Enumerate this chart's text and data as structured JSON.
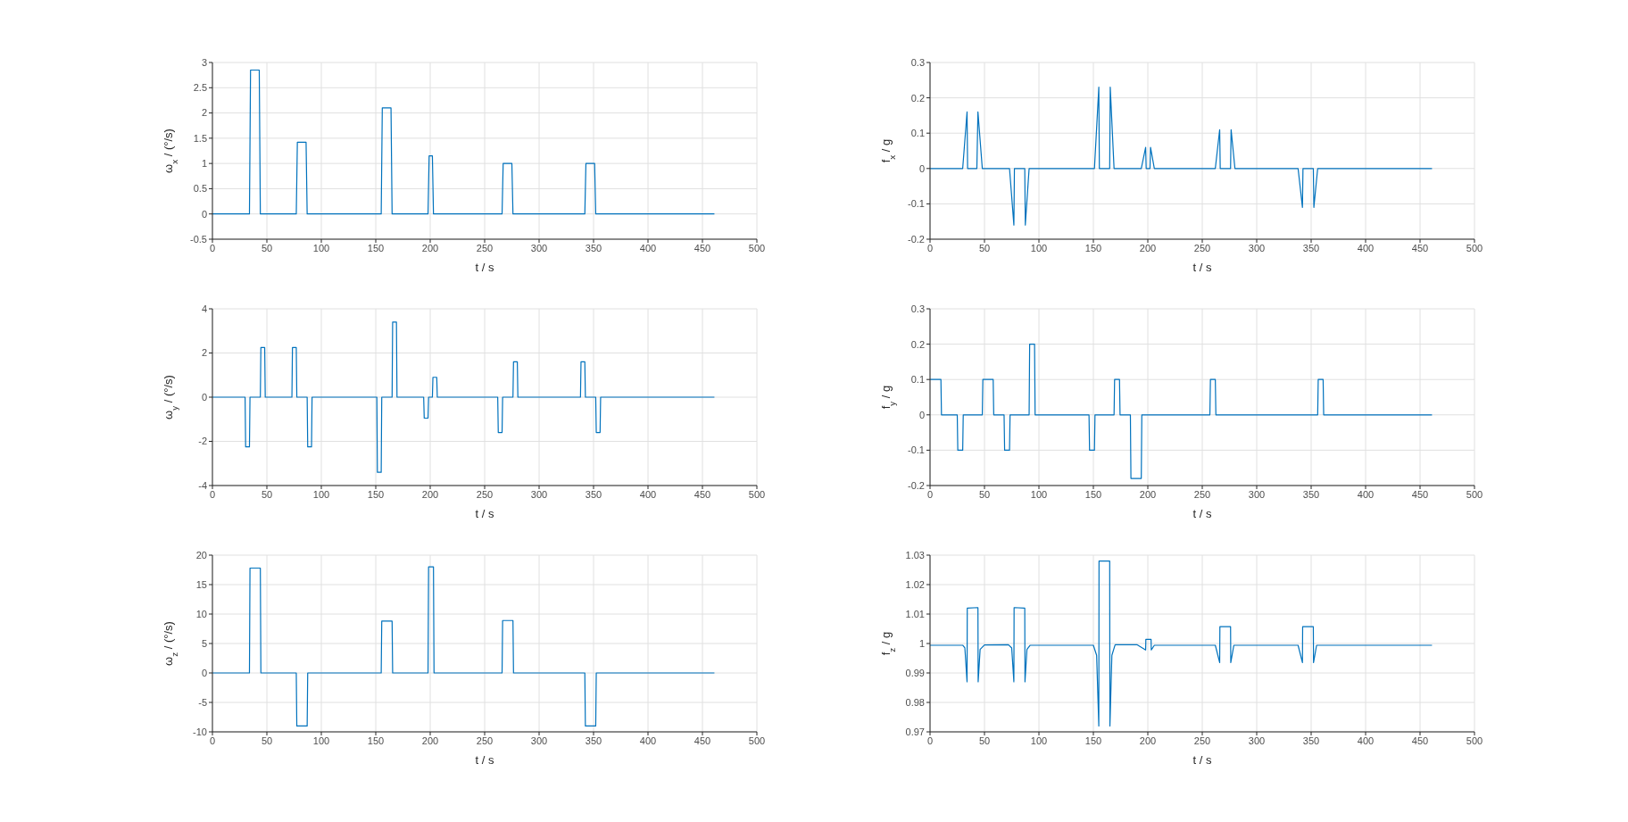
{
  "chart_data": [
    {
      "type": "line",
      "xlabel": "t  / s",
      "ylabel": "ω$_{x}$ / (°/s)",
      "color": "#0072bd",
      "grid": true,
      "xlim": [
        0,
        500
      ],
      "xticks": [
        0,
        50,
        100,
        150,
        200,
        250,
        300,
        350,
        400,
        450,
        500
      ],
      "ylim": [
        -0.5,
        3
      ],
      "yticks": [
        -0.5,
        0,
        0.5,
        1,
        1.5,
        2,
        2.5,
        3
      ],
      "x": [
        0,
        34,
        35,
        43,
        44,
        77,
        78,
        86,
        87,
        155,
        156,
        164,
        165,
        198,
        199,
        202,
        203,
        266,
        267,
        275,
        276,
        342,
        343,
        351,
        352,
        461
      ],
      "values": [
        0,
        0,
        2.85,
        2.85,
        0,
        0,
        1.42,
        1.42,
        0,
        0,
        2.1,
        2.1,
        0,
        0,
        1.15,
        1.15,
        0,
        0,
        1,
        1,
        0,
        0,
        1,
        1,
        0,
        0
      ]
    },
    {
      "type": "line",
      "xlabel": "t  / s",
      "ylabel": "f$_{x}$ / g",
      "color": "#0072bd",
      "grid": true,
      "xlim": [
        0,
        500
      ],
      "xticks": [
        0,
        50,
        100,
        150,
        200,
        250,
        300,
        350,
        400,
        450,
        500
      ],
      "ylim": [
        -0.2,
        0.3
      ],
      "yticks": [
        -0.2,
        -0.1,
        0,
        0.1,
        0.2,
        0.3
      ],
      "x": [
        0,
        30,
        34,
        34.5,
        43,
        44,
        48,
        73,
        77,
        77.5,
        87,
        87.5,
        91,
        151,
        155,
        155.5,
        165,
        165.5,
        169,
        194,
        198,
        198.5,
        202,
        202.5,
        206,
        262,
        266,
        266.5,
        276,
        276.5,
        280,
        338,
        342,
        342.5,
        352,
        352.5,
        356,
        461
      ],
      "values": [
        0,
        0,
        0.16,
        0,
        0,
        0.16,
        0,
        0,
        -0.16,
        0,
        0,
        -0.16,
        0,
        0,
        0.23,
        0,
        0,
        0.23,
        0,
        0,
        0.06,
        0,
        0,
        0.06,
        0,
        0,
        0.11,
        0,
        0,
        0.11,
        0,
        0,
        -0.11,
        0,
        0,
        -0.11,
        0,
        0
      ]
    },
    {
      "type": "line",
      "xlabel": "t  / s",
      "ylabel": "ω$_{y}$ / (°/s)",
      "color": "#0072bd",
      "grid": true,
      "xlim": [
        0,
        500
      ],
      "xticks": [
        0,
        50,
        100,
        150,
        200,
        250,
        300,
        350,
        400,
        450,
        500
      ],
      "ylim": [
        -4,
        4
      ],
      "yticks": [
        -4,
        -2,
        0,
        2,
        4
      ],
      "x": [
        0,
        30,
        30.5,
        34,
        34.5,
        44,
        44.5,
        48,
        48.5,
        73,
        73.5,
        77,
        77.5,
        87,
        87.5,
        91,
        91.5,
        151,
        151.5,
        155,
        155.5,
        165,
        165.5,
        169,
        169.5,
        194,
        194.5,
        198,
        198.5,
        202,
        202.5,
        206,
        206.5,
        262,
        262.5,
        266,
        266.5,
        276,
        276.5,
        280,
        280.5,
        338,
        338.5,
        342,
        342.5,
        352,
        352.5,
        356,
        356.5,
        461
      ],
      "values": [
        0,
        0,
        -2.25,
        -2.25,
        0,
        0,
        2.25,
        2.25,
        0,
        0,
        2.25,
        2.25,
        0,
        0,
        -2.25,
        -2.25,
        0,
        0,
        -3.4,
        -3.4,
        0,
        0,
        3.4,
        3.4,
        0,
        0,
        -0.95,
        -0.95,
        0,
        0,
        0.9,
        0.9,
        0,
        0,
        -1.6,
        -1.6,
        0,
        0,
        1.6,
        1.6,
        0,
        0,
        1.6,
        1.6,
        0,
        0,
        -1.6,
        -1.6,
        0,
        0
      ]
    },
    {
      "type": "line",
      "xlabel": "t  / s",
      "ylabel": "f$_{y}$ / g",
      "color": "#0072bd",
      "grid": true,
      "xlim": [
        0,
        500
      ],
      "xticks": [
        0,
        50,
        100,
        150,
        200,
        250,
        300,
        350,
        400,
        450,
        500
      ],
      "ylim": [
        -0.2,
        0.3
      ],
      "yticks": [
        -0.2,
        -0.1,
        0,
        0.1,
        0.2,
        0.3
      ],
      "x": [
        0,
        10,
        10.5,
        25,
        25.5,
        30,
        30.5,
        48,
        48.5,
        58,
        58.5,
        68,
        68.5,
        73,
        73.5,
        91,
        91.5,
        96,
        96.5,
        146,
        146.5,
        151,
        151.5,
        169,
        169.5,
        174,
        174.5,
        184,
        184.5,
        194,
        194.5,
        257,
        257.5,
        262,
        262.5,
        356,
        356.5,
        361,
        361.5,
        461
      ],
      "values": [
        0.1,
        0.1,
        0,
        0,
        -0.1,
        -0.1,
        0,
        0,
        0.1,
        0.1,
        0,
        0,
        -0.1,
        -0.1,
        0,
        0,
        0.2,
        0.2,
        0,
        0,
        -0.1,
        -0.1,
        0,
        0,
        0.1,
        0.1,
        0,
        0,
        -0.18,
        -0.18,
        0,
        0,
        0.1,
        0.1,
        0,
        0,
        0.1,
        0.1,
        0,
        0
      ]
    },
    {
      "type": "line",
      "xlabel": "t  / s",
      "ylabel": "ω$_{z}$ / (°/s)",
      "color": "#0072bd",
      "grid": true,
      "xlim": [
        0,
        500
      ],
      "xticks": [
        0,
        50,
        100,
        150,
        200,
        250,
        300,
        350,
        400,
        450,
        500
      ],
      "ylim": [
        -10,
        20
      ],
      "yticks": [
        -10,
        -5,
        0,
        5,
        10,
        15,
        20
      ],
      "x": [
        0,
        34,
        34.5,
        44,
        44.5,
        77,
        77.5,
        87,
        87.5,
        155,
        155.5,
        165,
        165.5,
        198,
        198.5,
        203,
        203.5,
        266,
        266.5,
        276,
        276.5,
        342,
        342.5,
        352,
        352.5,
        461
      ],
      "values": [
        0,
        0,
        17.8,
        17.8,
        0,
        0,
        -9,
        -9,
        0,
        0,
        8.8,
        8.8,
        0,
        0,
        18,
        18,
        0,
        0,
        8.9,
        8.9,
        0,
        0,
        -9,
        -9,
        0,
        0
      ]
    },
    {
      "type": "line",
      "xlabel": "t  / s",
      "ylabel": "f$_{z}$ / g",
      "color": "#0072bd",
      "grid": true,
      "xlim": [
        0,
        500
      ],
      "xticks": [
        0,
        50,
        100,
        150,
        200,
        250,
        300,
        350,
        400,
        450,
        500
      ],
      "ylim": [
        0.97,
        1.03
      ],
      "yticks": [
        0.97,
        0.98,
        0.99,
        1,
        1.01,
        1.02,
        1.03
      ],
      "x": [
        0,
        30,
        32,
        34,
        34.2,
        44,
        44.2,
        46,
        50,
        72,
        75,
        77,
        77.2,
        87,
        87.2,
        89,
        92,
        150,
        153,
        155,
        155.2,
        165,
        165.2,
        167,
        170,
        190,
        198,
        198.2,
        203,
        203.2,
        206,
        262,
        266,
        266.2,
        276,
        276.2,
        279,
        338,
        342,
        342.2,
        352,
        352.2,
        355,
        461
      ],
      "values": [
        0.9994,
        0.9994,
        0.9985,
        0.987,
        1.012,
        1.0122,
        0.987,
        0.998,
        0.9995,
        0.9996,
        0.9985,
        0.987,
        1.0122,
        1.012,
        0.987,
        0.998,
        0.9994,
        0.9994,
        0.996,
        0.972,
        1.028,
        1.028,
        0.972,
        0.996,
        0.9996,
        0.9996,
        0.9978,
        1.0014,
        1.0014,
        0.9978,
        0.9994,
        0.9994,
        0.9935,
        1.0057,
        1.0057,
        0.9935,
        0.9994,
        0.9994,
        0.9935,
        1.0057,
        1.0057,
        0.9935,
        0.9994,
        0.9994
      ]
    }
  ]
}
